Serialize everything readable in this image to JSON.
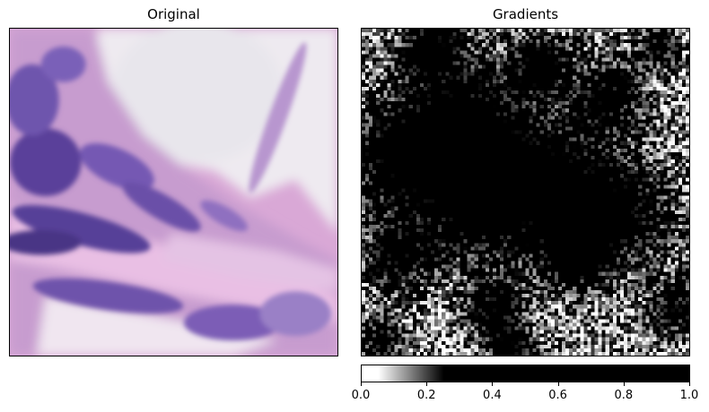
{
  "left_panel": {
    "title": "Original"
  },
  "right_panel": {
    "title": "Gradients"
  },
  "colorbar": {
    "colormap": "reversed-gray",
    "range": [
      0.0,
      1.0
    ],
    "ticks": [
      "0.0",
      "0.2",
      "0.4",
      "0.6",
      "0.8",
      "1.0"
    ],
    "tick_values": [
      0.0,
      0.2,
      0.4,
      0.6,
      0.8,
      1.0
    ]
  },
  "colors": {
    "tissue_light": "#f0eef2",
    "tissue_pink": "#d7a6d3",
    "nucleus_purple": "#6b4fa8",
    "nucleus_dark": "#4a3585"
  }
}
